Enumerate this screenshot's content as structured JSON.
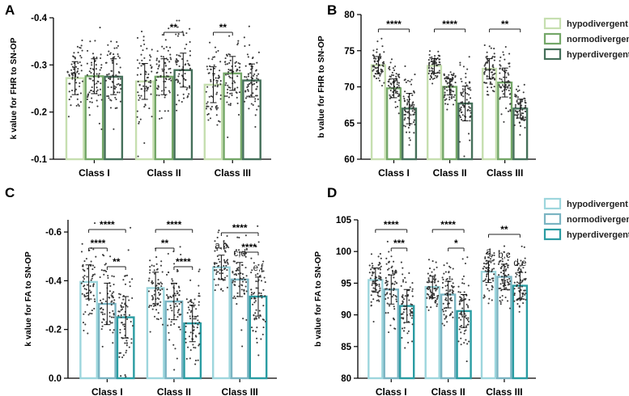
{
  "chart_data": [
    {
      "panel": "A",
      "type": "bar",
      "ylabel": "k value for FHR to SN-OP",
      "ylim": [
        -0.1,
        -0.4
      ],
      "yticks": [
        "-0.4",
        "-0.3",
        "-0.2",
        "-0.1"
      ],
      "ytick_values": [
        -0.4,
        -0.3,
        -0.2,
        -0.1
      ],
      "categories": [
        "Class I",
        "Class II",
        "Class III"
      ],
      "series": [
        {
          "name": "hypodivergent",
          "values": [
            -0.272,
            -0.265,
            -0.258
          ],
          "err": [
            0.035,
            0.038,
            0.038
          ]
        },
        {
          "name": "normodivergent",
          "values": [
            -0.276,
            -0.275,
            -0.282
          ],
          "err": [
            0.037,
            0.038,
            0.036
          ]
        },
        {
          "name": "hyperdivergent",
          "values": [
            -0.275,
            -0.289,
            -0.267
          ],
          "err": [
            0.038,
            0.036,
            0.035
          ]
        }
      ],
      "significance": [
        {
          "group": 1,
          "from": 1,
          "to": 2,
          "label": "**"
        },
        {
          "group": 2,
          "from": 0,
          "to": 1,
          "label": "**"
        }
      ],
      "letters": []
    },
    {
      "panel": "B",
      "type": "bar",
      "ylabel": "b value for FHR to SN-OP",
      "ylim": [
        60,
        80
      ],
      "yticks": [
        "60",
        "65",
        "70",
        "75",
        "80"
      ],
      "ytick_values": [
        60,
        65,
        70,
        75,
        80
      ],
      "categories": [
        "Class I",
        "Class II",
        "Class III"
      ],
      "series": [
        {
          "name": "hypodivergent",
          "values": [
            73.0,
            72.9,
            72.5
          ],
          "err": [
            1.2,
            1.0,
            1.4
          ]
        },
        {
          "name": "normodivergent",
          "values": [
            69.8,
            70.0,
            70.6
          ],
          "err": [
            1.3,
            1.1,
            2.0
          ]
        },
        {
          "name": "hyperdivergent",
          "values": [
            67.0,
            67.7,
            67.0
          ],
          "err": [
            2.1,
            2.4,
            1.3
          ]
        }
      ],
      "significance": [
        {
          "group": 0,
          "from": 0,
          "to": 2,
          "label": "****"
        },
        {
          "group": 1,
          "from": 0,
          "to": 2,
          "label": "****"
        },
        {
          "group": 2,
          "from": 0,
          "to": 2,
          "label": "**"
        }
      ],
      "letters": []
    },
    {
      "panel": "C",
      "type": "bar",
      "ylabel": "k value for FA to SN-OP",
      "ylim": [
        0.0,
        -0.65
      ],
      "yticks": [
        "-0.6",
        "-0.4",
        "-0.2",
        "0.0"
      ],
      "ytick_values": [
        -0.6,
        -0.4,
        -0.2,
        0.0
      ],
      "categories": [
        "Class I",
        "Class II",
        "Class III"
      ],
      "series": [
        {
          "name": "hypodivergent",
          "values": [
            -0.395,
            -0.37,
            -0.455
          ],
          "err": [
            0.07,
            0.065,
            0.05
          ]
        },
        {
          "name": "normodivergent",
          "values": [
            -0.305,
            -0.315,
            -0.405
          ],
          "err": [
            0.085,
            0.075,
            0.07
          ]
        },
        {
          "name": "hyperdivergent",
          "values": [
            -0.25,
            -0.225,
            -0.335
          ],
          "err": [
            0.085,
            0.075,
            0.08
          ]
        }
      ],
      "significance": [
        {
          "group": 0,
          "from": 0,
          "to": 1,
          "label": "****"
        },
        {
          "group": 0,
          "from": 0,
          "to": 2,
          "label": "****"
        },
        {
          "group": 0,
          "from": 1,
          "to": 2,
          "label": "**"
        },
        {
          "group": 1,
          "from": 0,
          "to": 1,
          "label": "**"
        },
        {
          "group": 1,
          "from": 0,
          "to": 2,
          "label": "****"
        },
        {
          "group": 1,
          "from": 1,
          "to": 2,
          "label": "****"
        },
        {
          "group": 2,
          "from": 0,
          "to": 2,
          "label": "****"
        },
        {
          "group": 2,
          "from": 1,
          "to": 2,
          "label": "****"
        }
      ],
      "letters": [
        {
          "group": 2,
          "series": 0,
          "text": "a,b"
        },
        {
          "group": 2,
          "series": 1,
          "text": "c,d"
        },
        {
          "group": 2,
          "series": 2,
          "text": "e,f"
        }
      ]
    },
    {
      "panel": "D",
      "type": "bar",
      "ylabel": "b value for FA to SN-OP",
      "ylim": [
        80,
        105
      ],
      "yticks": [
        "80",
        "85",
        "90",
        "95",
        "100",
        "105"
      ],
      "ytick_values": [
        80,
        85,
        90,
        95,
        100,
        105
      ],
      "categories": [
        "Class I",
        "Class II",
        "Class III"
      ],
      "series": [
        {
          "name": "hypodivergent",
          "values": [
            95.5,
            94.4,
            96.8
          ],
          "err": [
            1.9,
            1.7,
            1.7
          ]
        },
        {
          "name": "normodivergent",
          "values": [
            94.0,
            93.2,
            96.0
          ],
          "err": [
            2.3,
            2.1,
            2.0
          ]
        },
        {
          "name": "hyperdivergent",
          "values": [
            91.4,
            90.6,
            94.6
          ],
          "err": [
            2.6,
            2.6,
            2.1
          ]
        }
      ],
      "significance": [
        {
          "group": 0,
          "from": 0,
          "to": 2,
          "label": "****"
        },
        {
          "group": 0,
          "from": 1,
          "to": 2,
          "label": "***"
        },
        {
          "group": 1,
          "from": 0,
          "to": 2,
          "label": "****"
        },
        {
          "group": 1,
          "from": 1,
          "to": 2,
          "label": "*"
        },
        {
          "group": 2,
          "from": 0,
          "to": 2,
          "label": "**"
        }
      ],
      "letters": [
        {
          "group": 2,
          "series": 0,
          "text": "a"
        },
        {
          "group": 2,
          "series": 1,
          "text": "b,c"
        },
        {
          "group": 2,
          "series": 2,
          "text": "d,e"
        }
      ]
    }
  ],
  "legends": {
    "top": {
      "items": [
        "hypodivergent",
        "normodivergent",
        "hyperdivergent"
      ],
      "colors": [
        "#c6dfb0",
        "#74a768",
        "#45705a"
      ]
    },
    "bottom": {
      "items": [
        "hypodivergent",
        "normodivergent",
        "hyperdivergent"
      ],
      "colors": [
        "#9dd6dd",
        "#7ab4c2",
        "#2a9ca2"
      ]
    }
  },
  "panel_colors": {
    "A": [
      "#c6dfb0",
      "#74a768",
      "#45705a"
    ],
    "B": [
      "#c6dfb0",
      "#74a768",
      "#45705a"
    ],
    "C": [
      "#9dd6dd",
      "#7ab4c2",
      "#2a9ca2"
    ],
    "D": [
      "#9dd6dd",
      "#7ab4c2",
      "#2a9ca2"
    ]
  }
}
